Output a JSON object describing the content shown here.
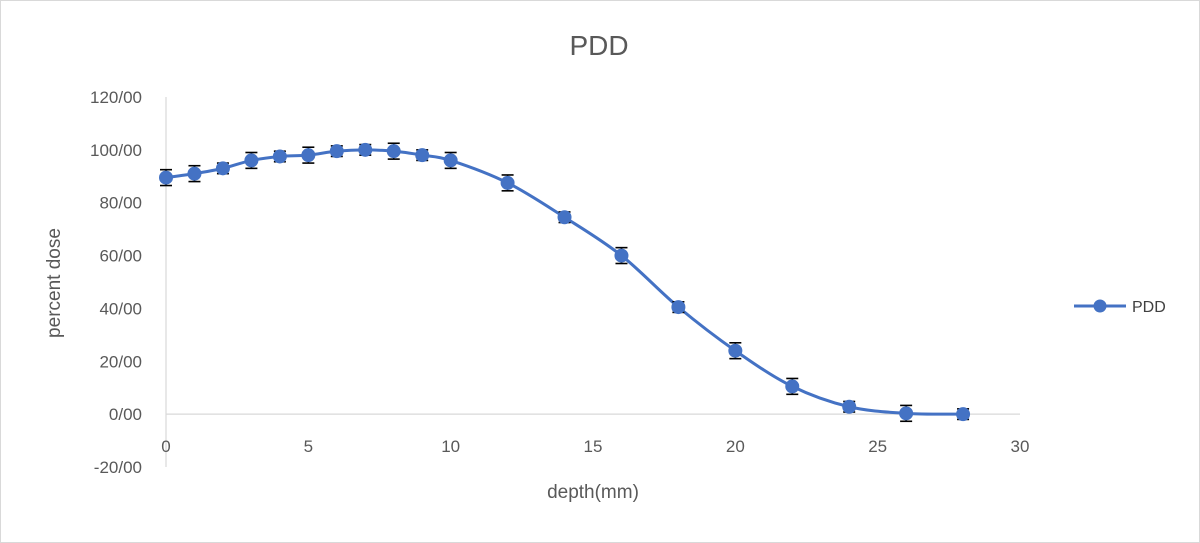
{
  "chart_data": {
    "type": "line",
    "title": "PDD",
    "xlabel": "depth(mm)",
    "ylabel": "percent dose",
    "xlim": [
      0,
      30
    ],
    "ylim": [
      -20,
      120
    ],
    "x_ticks": [
      0,
      5,
      10,
      15,
      20,
      25,
      30
    ],
    "x_tick_labels": [
      "0",
      "5",
      "10",
      "15",
      "20",
      "25",
      "30"
    ],
    "y_ticks": [
      -20,
      0,
      20,
      40,
      60,
      80,
      100,
      120
    ],
    "y_tick_labels": [
      "-20/00",
      "0/00",
      "20/00",
      "40/00",
      "60/00",
      "80/00",
      "100/00",
      "120/00"
    ],
    "grid": false,
    "legend_position": "right",
    "series": [
      {
        "name": "PDD",
        "color": "#4472C4",
        "x": [
          0,
          1,
          2,
          3,
          4,
          5,
          6,
          7,
          8,
          9,
          10,
          12,
          14,
          16,
          18,
          20,
          22,
          24,
          26,
          28
        ],
        "values": [
          89.5,
          91,
          93,
          96,
          97.5,
          98,
          99.5,
          100,
          99.5,
          98,
          96,
          87.5,
          74.5,
          60,
          40.5,
          24,
          10.5,
          2.8,
          0.3,
          0
        ],
        "error": [
          3,
          3,
          2,
          3,
          2,
          3,
          2,
          2,
          3,
          2,
          3,
          3,
          2,
          3,
          2,
          3,
          3,
          2,
          3,
          2
        ]
      }
    ]
  }
}
